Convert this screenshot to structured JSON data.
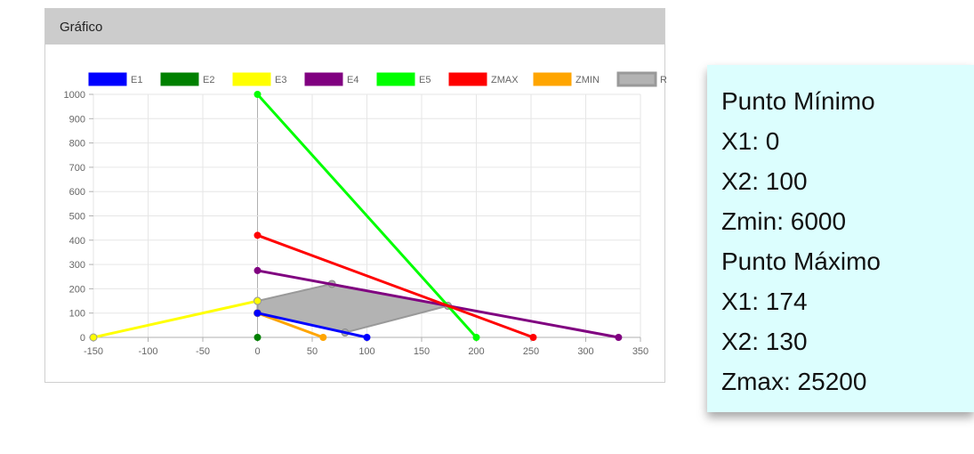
{
  "panel": {
    "title": "Gráfico"
  },
  "chart_data": {
    "type": "line",
    "xlim": [
      -150,
      350
    ],
    "ylim": [
      0,
      1000
    ],
    "x_ticks": [
      -150,
      -100,
      -50,
      0,
      50,
      100,
      150,
      200,
      250,
      300,
      350
    ],
    "y_ticks": [
      0,
      100,
      200,
      300,
      400,
      500,
      600,
      700,
      800,
      900,
      1000
    ],
    "grid": true,
    "legend": "top",
    "series": [
      {
        "name": "E1",
        "color": "#0000ff",
        "points": [
          [
            0,
            100
          ],
          [
            100,
            0
          ]
        ]
      },
      {
        "name": "E2",
        "color": "#008000",
        "points": [
          [
            0,
            0
          ]
        ]
      },
      {
        "name": "E3",
        "color": "#ffff00",
        "points": [
          [
            -150,
            0
          ],
          [
            0,
            150
          ]
        ]
      },
      {
        "name": "E4",
        "color": "#800080",
        "points": [
          [
            0,
            275
          ],
          [
            330,
            0
          ]
        ]
      },
      {
        "name": "E5",
        "color": "#00ff00",
        "points": [
          [
            0,
            1000
          ],
          [
            200,
            0
          ]
        ]
      },
      {
        "name": "ZMAX",
        "color": "#ff0000",
        "points": [
          [
            0,
            420
          ],
          [
            252,
            0
          ]
        ]
      },
      {
        "name": "ZMIN",
        "color": "#ffa500",
        "points": [
          [
            0,
            100
          ],
          [
            60,
            0
          ]
        ]
      },
      {
        "name": "RF",
        "color": "#999999",
        "fill": "#b3b3b3",
        "points": [
          [
            0,
            100
          ],
          [
            0,
            150
          ],
          [
            68,
            220
          ],
          [
            174,
            130
          ],
          [
            80,
            20
          ],
          [
            0,
            100
          ]
        ]
      }
    ]
  },
  "results": {
    "min_title": "Punto Mínimo",
    "min_x1": "X1: 0",
    "min_x2": "X2: 100",
    "min_z": "Zmin: 6000",
    "max_title": "Punto Máximo",
    "max_x1": "X1: 174",
    "max_x2": "X2: 130",
    "max_z": "Zmax: 25200"
  }
}
